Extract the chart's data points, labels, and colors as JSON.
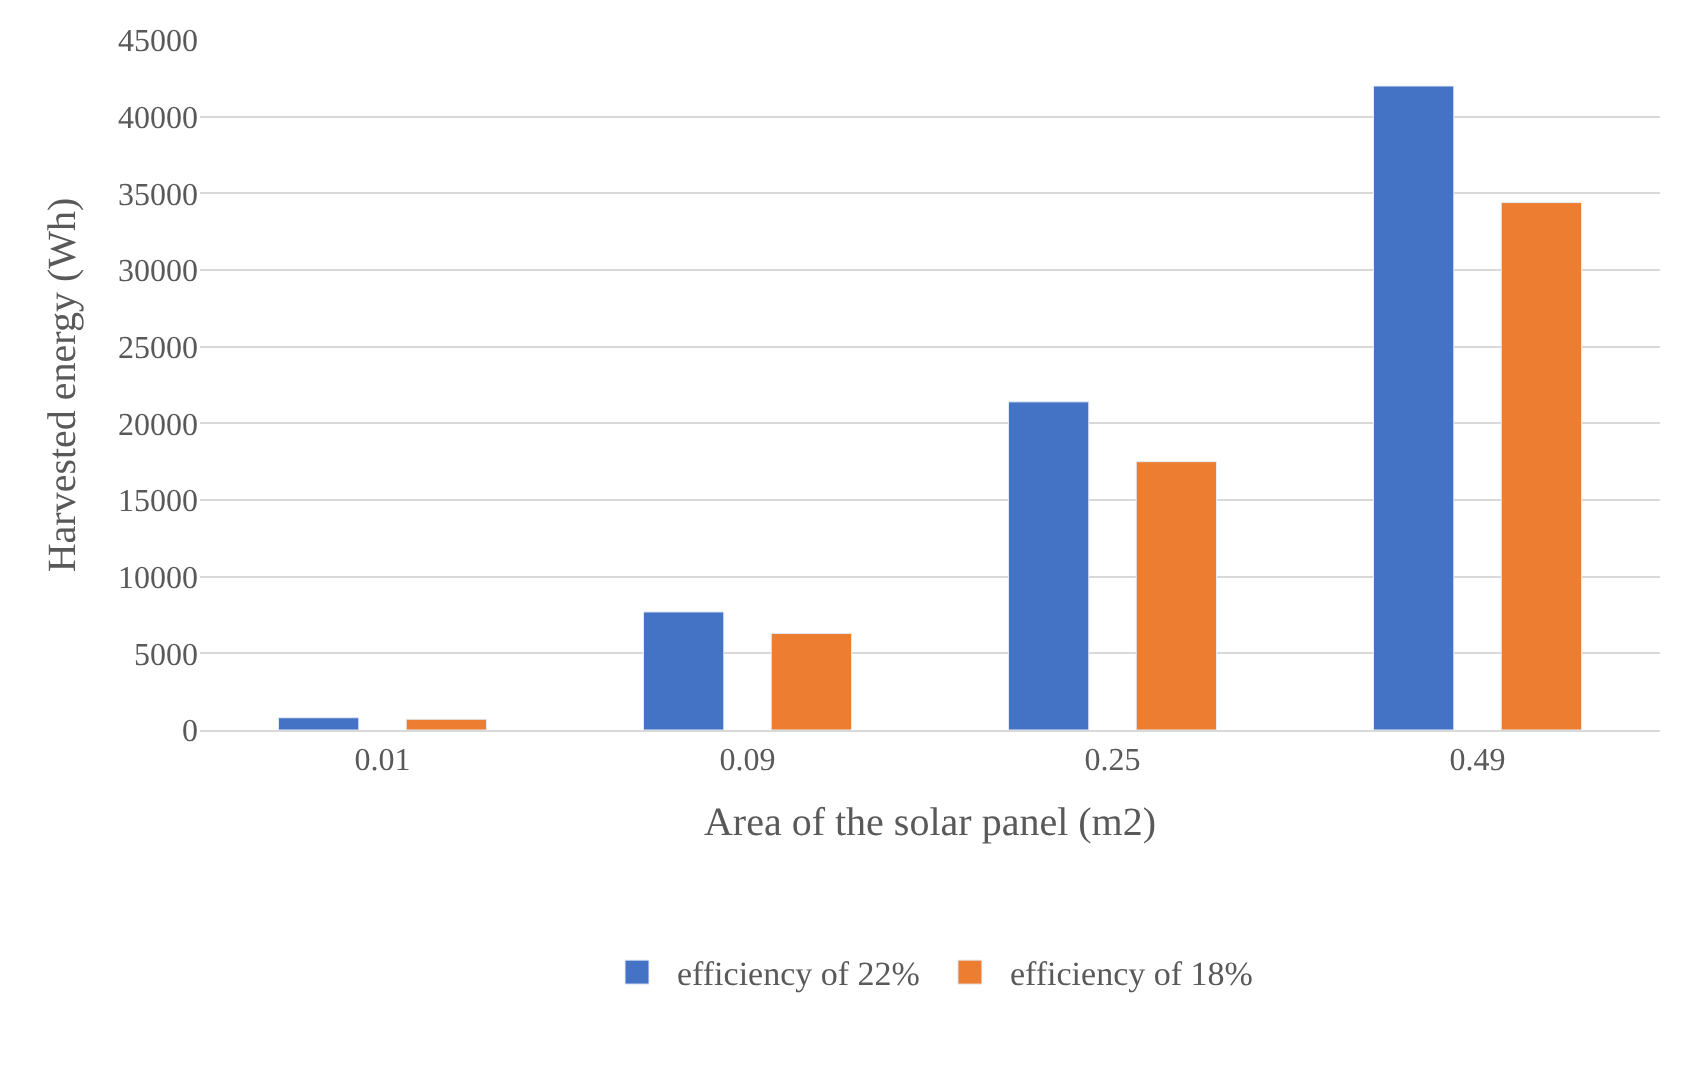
{
  "chart_data": {
    "type": "bar",
    "xlabel": "Area of the solar panel (m2)",
    "ylabel": "Harvested energy (Wh)",
    "categories": [
      "0.01",
      "0.09",
      "0.25",
      "0.49"
    ],
    "series": [
      {
        "name": "efficiency of 22%",
        "color": "#4472c4",
        "values": [
          800,
          7700,
          21400,
          42000
        ]
      },
      {
        "name": "efficiency of 18%",
        "color": "#ed7d31",
        "values": [
          700,
          6300,
          17500,
          34400
        ]
      }
    ],
    "ylim": [
      0,
      45000
    ],
    "yticks": [
      0,
      5000,
      10000,
      15000,
      20000,
      25000,
      30000,
      35000,
      40000,
      45000
    ],
    "grid": "y",
    "legend": "bottom"
  }
}
